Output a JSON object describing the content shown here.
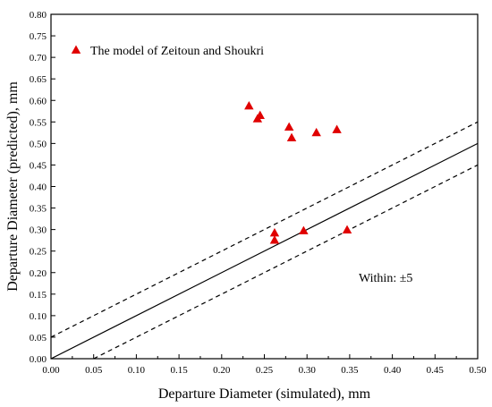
{
  "chart_data": {
    "type": "scatter",
    "xlabel": "Departure Diameter (simulated), mm",
    "ylabel": "Departure Diameter (predicted), mm",
    "xlim": [
      0.0,
      0.5
    ],
    "ylim": [
      0.0,
      0.8
    ],
    "x_ticks": [
      0.0,
      0.05,
      0.1,
      0.15,
      0.2,
      0.25,
      0.3,
      0.35,
      0.4,
      0.45,
      0.5
    ],
    "y_ticks": [
      0.0,
      0.05,
      0.1,
      0.15,
      0.2,
      0.25,
      0.3,
      0.35,
      0.4,
      0.45,
      0.5,
      0.55,
      0.6,
      0.65,
      0.7,
      0.75,
      0.8
    ],
    "x_tick_labels": [
      "0.00",
      "0.05",
      "0.10",
      "0.15",
      "0.20",
      "0.25",
      "0.30",
      "0.35",
      "0.40",
      "0.45",
      "0.50"
    ],
    "y_tick_labels": [
      "0.00",
      "0.05",
      "0.10",
      "0.15",
      "0.20",
      "0.25",
      "0.30",
      "0.35",
      "0.40",
      "0.45",
      "0.50",
      "0.55",
      "0.60",
      "0.65",
      "0.70",
      "0.75",
      "0.80"
    ],
    "grid": false,
    "legend_position": "top-left",
    "series": [
      {
        "name": "The model of Zeitoun and Shoukri",
        "marker": "triangle",
        "color": "#e00000",
        "points": [
          {
            "x": 0.232,
            "y": 0.587
          },
          {
            "x": 0.242,
            "y": 0.557
          },
          {
            "x": 0.245,
            "y": 0.565
          },
          {
            "x": 0.279,
            "y": 0.538
          },
          {
            "x": 0.282,
            "y": 0.513
          },
          {
            "x": 0.311,
            "y": 0.525
          },
          {
            "x": 0.335,
            "y": 0.532
          },
          {
            "x": 0.262,
            "y": 0.292
          },
          {
            "x": 0.262,
            "y": 0.275
          },
          {
            "x": 0.296,
            "y": 0.297
          },
          {
            "x": 0.347,
            "y": 0.299
          }
        ]
      }
    ],
    "reference_lines": [
      {
        "style": "solid",
        "points": [
          [
            0.0,
            0.0
          ],
          [
            0.5,
            0.5
          ]
        ]
      },
      {
        "style": "dashed",
        "points": [
          [
            0.0,
            0.05
          ],
          [
            0.5,
            0.55
          ]
        ]
      },
      {
        "style": "dashed",
        "points": [
          [
            0.05,
            0.0
          ],
          [
            0.5,
            0.45
          ]
        ]
      }
    ],
    "annotation": "Within: ±5"
  }
}
